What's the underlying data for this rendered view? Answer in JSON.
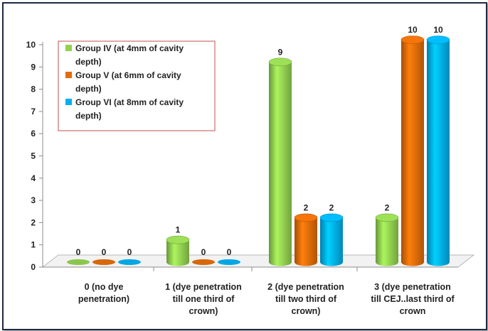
{
  "chart_data": {
    "type": "bar",
    "categories": [
      [
        "0 (no dye",
        "penetration)"
      ],
      [
        "1 (dye penetration",
        "till one third of",
        "crown)"
      ],
      [
        "2  (dye penetration",
        "till two third of",
        "crown)"
      ],
      [
        "3 (dye penetration",
        "till CEJ..last third of",
        "crown"
      ]
    ],
    "series": [
      {
        "name": [
          "Group IV (at 4mm of cavity",
          "depth)"
        ],
        "values": [
          0,
          1,
          9,
          2
        ],
        "color": "#92d050"
      },
      {
        "name": [
          "Group V (at 6mm of cavity",
          "depth)"
        ],
        "values": [
          0,
          0,
          2,
          10
        ],
        "color": "#e36c09"
      },
      {
        "name": [
          "Group VI (at 8mm of cavity",
          "depth)"
        ],
        "values": [
          0,
          0,
          2,
          10
        ],
        "color": "#00b0f0"
      }
    ],
    "ylim": [
      0,
      10
    ],
    "yticks": [
      "0",
      "1",
      "2",
      "3",
      "4",
      "5",
      "6",
      "7",
      "8",
      "9",
      "10"
    ],
    "legend_position": "top-left",
    "style": "3d-cylinder"
  }
}
